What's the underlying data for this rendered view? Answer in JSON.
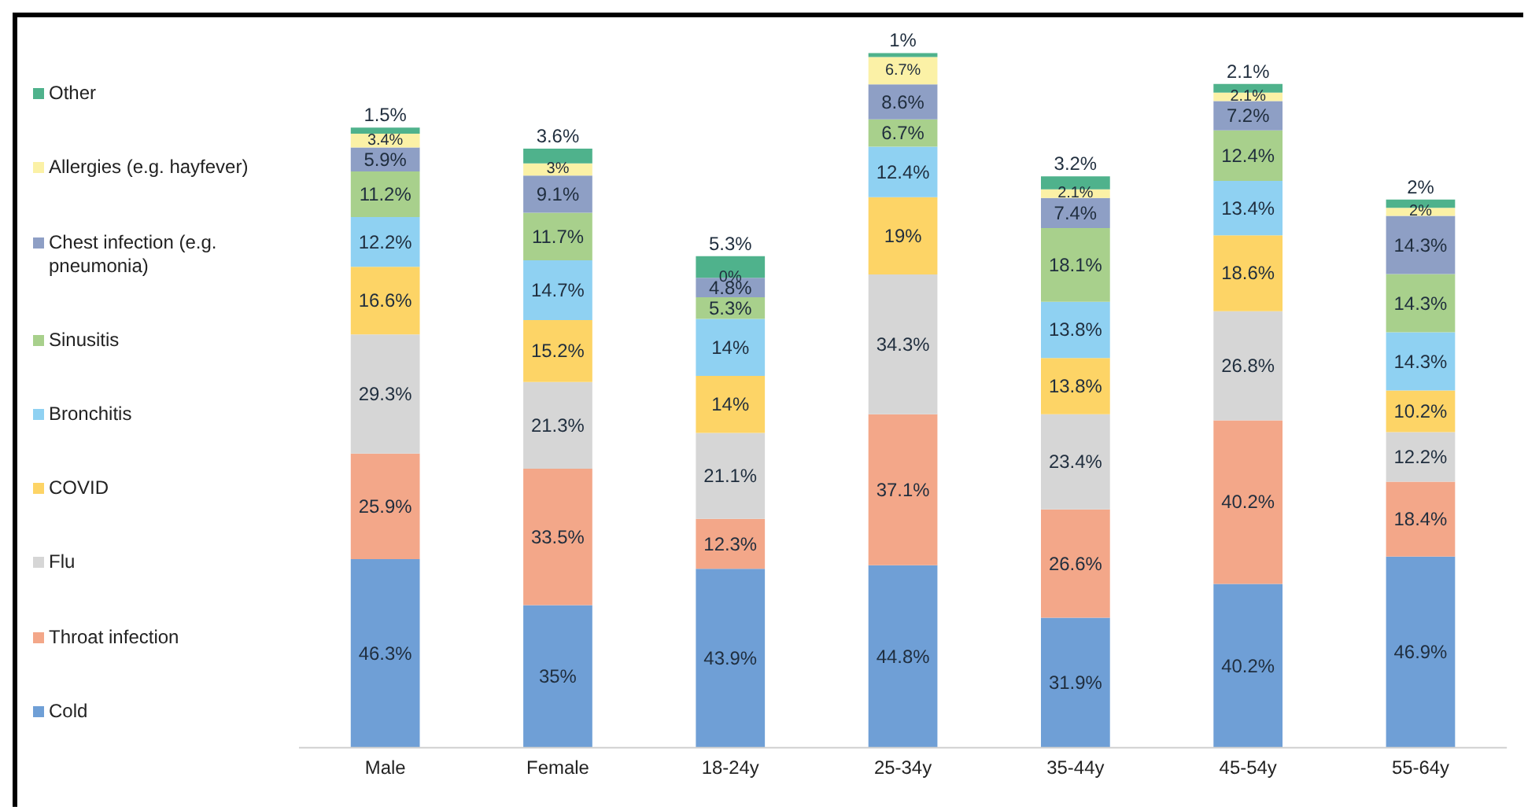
{
  "chart_data": {
    "type": "bar",
    "stacked": true,
    "legend": "left",
    "categories": [
      "Male",
      "Female",
      "18-24y",
      "25-34y",
      "35-44y",
      "45-54y",
      "55-64y"
    ],
    "series": [
      {
        "name": "Cold",
        "color": "#6f9fd6",
        "values": [
          46.3,
          35,
          43.9,
          44.8,
          31.9,
          40.2,
          46.9
        ],
        "value_labels": [
          "46.3%",
          "35%",
          "43.9%",
          "44.8%",
          "31.9%",
          "40.2%",
          "46.9%"
        ]
      },
      {
        "name": "Throat infection",
        "color": "#f3a789",
        "values": [
          25.9,
          33.5,
          12.3,
          37.1,
          26.6,
          40.2,
          18.4
        ],
        "value_labels": [
          "25.9%",
          "33.5%",
          "12.3%",
          "37.1%",
          "26.6%",
          "40.2%",
          "18.4%"
        ]
      },
      {
        "name": "Flu",
        "color": "#d6d6d6",
        "values": [
          29.3,
          21.3,
          21.1,
          34.3,
          23.4,
          26.8,
          12.2
        ],
        "value_labels": [
          "29.3%",
          "21.3%",
          "21.1%",
          "34.3%",
          "23.4%",
          "26.8%",
          "12.2%"
        ]
      },
      {
        "name": "COVID",
        "color": "#fdd466",
        "values": [
          16.6,
          15.2,
          14,
          19,
          13.8,
          18.6,
          10.2
        ],
        "value_labels": [
          "16.6%",
          "15.2%",
          "14%",
          "19%",
          "13.8%",
          "18.6%",
          "10.2%"
        ]
      },
      {
        "name": "Bronchitis",
        "color": "#8fd1f2",
        "values": [
          12.2,
          14.7,
          14,
          12.4,
          13.8,
          13.4,
          14.3
        ],
        "value_labels": [
          "12.2%",
          "14.7%",
          "14%",
          "12.4%",
          "13.8%",
          "13.4%",
          "14.3%"
        ]
      },
      {
        "name": "Sinusitis",
        "color": "#a8d08c",
        "values": [
          11.2,
          11.7,
          5.3,
          6.7,
          18.1,
          12.4,
          14.3
        ],
        "value_labels": [
          "11.2%",
          "11.7%",
          "5.3%",
          "6.7%",
          "18.1%",
          "12.4%",
          "14.3%"
        ]
      },
      {
        "name": "Chest infection (e.g. pneumonia)",
        "color": "#8e9fc5",
        "values": [
          5.9,
          9.1,
          4.8,
          8.6,
          7.4,
          7.2,
          14.3
        ],
        "value_labels": [
          "5.9%",
          "9.1%",
          "4.8%",
          "8.6%",
          "7.4%",
          "7.2%",
          "14.3%"
        ]
      },
      {
        "name": "Allergies (e.g. hayfever)",
        "color": "#fbf1a6",
        "values": [
          3.4,
          3,
          0,
          6.7,
          2.1,
          2.1,
          2
        ],
        "value_labels": [
          "3.4%",
          "3%",
          "0%",
          "6.7%",
          "2.1%",
          "2.1%",
          "2%"
        ]
      },
      {
        "name": "Other",
        "color": "#4fb28c",
        "values": [
          1.5,
          3.6,
          5.3,
          1,
          3.2,
          2.1,
          2
        ],
        "value_labels": [
          "1.5%",
          "3.6%",
          "5.3%",
          "1%",
          "3.2%",
          "2.1%",
          "2%"
        ]
      }
    ]
  }
}
